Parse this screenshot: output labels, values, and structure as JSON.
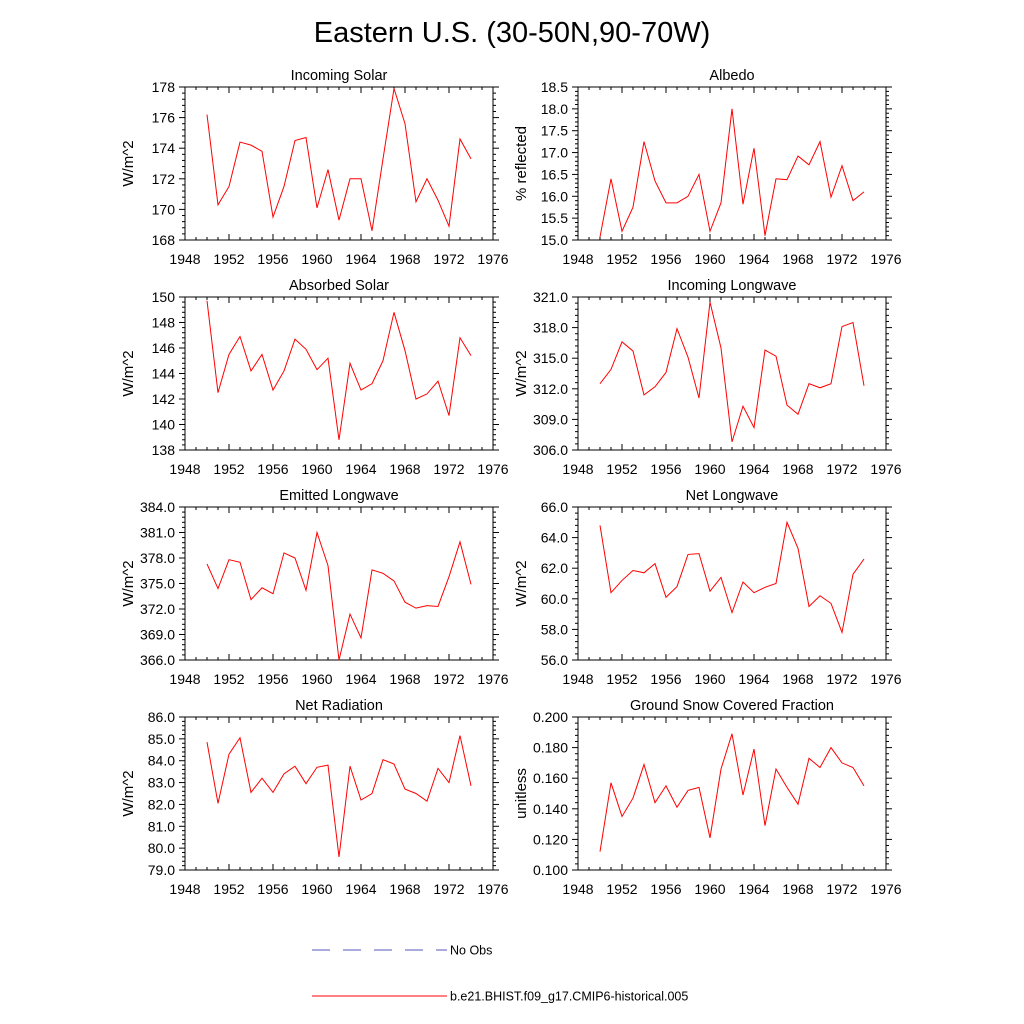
{
  "figure": {
    "title": "Eastern U.S. (30-50N,90-70W)",
    "series_color": "#ff0000",
    "obs_color": "#5555bb"
  },
  "legend": {
    "obs_label": "No Obs",
    "model_label": "b.e21.BHIST.f09_g17.CMIP6-historical.005"
  },
  "chart_data": [
    {
      "type": "line",
      "title": "Incoming Solar",
      "ylabel": "W/m^2",
      "xlim": [
        1948,
        1976
      ],
      "xticks": [
        1948,
        1952,
        1956,
        1960,
        1964,
        1968,
        1972,
        1976
      ],
      "ylim": [
        168,
        178
      ],
      "yticks": [
        168,
        170,
        172,
        174,
        176,
        178
      ],
      "yfmt": 0,
      "x": [
        1950,
        1951,
        1952,
        1953,
        1954,
        1955,
        1956,
        1957,
        1958,
        1959,
        1960,
        1961,
        1962,
        1963,
        1964,
        1965,
        1966,
        1967,
        1968,
        1969,
        1970,
        1971,
        1972,
        1973,
        1974
      ],
      "values": [
        176.2,
        170.3,
        171.5,
        174.4,
        174.2,
        173.8,
        169.5,
        171.5,
        174.5,
        174.7,
        170.1,
        172.6,
        169.3,
        172.0,
        172.0,
        168.6,
        173.3,
        177.9,
        175.6,
        170.5,
        172.0,
        170.6,
        168.9,
        174.6,
        173.3
      ]
    },
    {
      "type": "line",
      "title": "Albedo",
      "ylabel": "% reflected",
      "xlim": [
        1948,
        1976
      ],
      "xticks": [
        1948,
        1952,
        1956,
        1960,
        1964,
        1968,
        1972,
        1976
      ],
      "ylim": [
        15.0,
        18.5
      ],
      "yticks": [
        15.0,
        15.5,
        16.0,
        16.5,
        17.0,
        17.5,
        18.0,
        18.5
      ],
      "yfmt": 1,
      "x": [
        1950,
        1951,
        1952,
        1953,
        1954,
        1955,
        1956,
        1957,
        1958,
        1959,
        1960,
        1961,
        1962,
        1963,
        1964,
        1965,
        1966,
        1967,
        1968,
        1969,
        1970,
        1971,
        1972,
        1973,
        1974
      ],
      "values": [
        15.07,
        16.4,
        15.2,
        15.75,
        17.25,
        16.35,
        15.85,
        15.85,
        16.0,
        16.5,
        15.2,
        15.85,
        18.0,
        15.82,
        17.1,
        15.1,
        16.4,
        16.38,
        16.92,
        16.72,
        17.25,
        15.98,
        16.7,
        15.9,
        16.1
      ]
    },
    {
      "type": "line",
      "title": "Absorbed Solar",
      "ylabel": "W/m^2",
      "xlim": [
        1948,
        1976
      ],
      "xticks": [
        1948,
        1952,
        1956,
        1960,
        1964,
        1968,
        1972,
        1976
      ],
      "ylim": [
        138,
        150
      ],
      "yticks": [
        138,
        140,
        142,
        144,
        146,
        148,
        150
      ],
      "yfmt": 0,
      "x": [
        1950,
        1951,
        1952,
        1953,
        1954,
        1955,
        1956,
        1957,
        1958,
        1959,
        1960,
        1961,
        1962,
        1963,
        1964,
        1965,
        1966,
        1967,
        1968,
        1969,
        1970,
        1971,
        1972,
        1973,
        1974
      ],
      "values": [
        149.7,
        142.5,
        145.5,
        146.9,
        144.2,
        145.5,
        142.7,
        144.2,
        146.7,
        145.9,
        144.3,
        145.2,
        138.8,
        144.8,
        142.7,
        143.2,
        145.0,
        148.8,
        145.8,
        142.0,
        142.4,
        143.4,
        140.7,
        146.8,
        145.4
      ]
    },
    {
      "type": "line",
      "title": "Incoming Longwave",
      "ylabel": "W/m^2",
      "xlim": [
        1948,
        1976
      ],
      "xticks": [
        1948,
        1952,
        1956,
        1960,
        1964,
        1968,
        1972,
        1976
      ],
      "ylim": [
        306.0,
        321.0
      ],
      "yticks": [
        306.0,
        309.0,
        312.0,
        315.0,
        318.0,
        321.0
      ],
      "yfmt": 1,
      "x": [
        1950,
        1951,
        1952,
        1953,
        1954,
        1955,
        1956,
        1957,
        1958,
        1959,
        1960,
        1961,
        1962,
        1963,
        1964,
        1965,
        1966,
        1967,
        1968,
        1969,
        1970,
        1971,
        1972,
        1973,
        1974
      ],
      "values": [
        312.5,
        313.9,
        316.6,
        315.7,
        311.4,
        312.2,
        313.6,
        317.9,
        315.1,
        311.1,
        320.5,
        316.0,
        306.8,
        310.3,
        308.2,
        315.8,
        315.2,
        310.4,
        309.5,
        312.5,
        312.1,
        312.5,
        318.1,
        318.5,
        312.3
      ]
    },
    {
      "type": "line",
      "title": "Emitted Longwave",
      "ylabel": "W/m^2",
      "xlim": [
        1948,
        1976
      ],
      "xticks": [
        1948,
        1952,
        1956,
        1960,
        1964,
        1968,
        1972,
        1976
      ],
      "ylim": [
        366.0,
        384.0
      ],
      "yticks": [
        366.0,
        369.0,
        372.0,
        375.0,
        378.0,
        381.0,
        384.0
      ],
      "yfmt": 1,
      "x": [
        1950,
        1951,
        1952,
        1953,
        1954,
        1955,
        1956,
        1957,
        1958,
        1959,
        1960,
        1961,
        1962,
        1963,
        1964,
        1965,
        1966,
        1967,
        1968,
        1969,
        1970,
        1971,
        1972,
        1973,
        1974
      ],
      "values": [
        377.3,
        374.4,
        377.8,
        377.5,
        373.1,
        374.5,
        373.8,
        378.6,
        378.0,
        374.2,
        381.0,
        377.1,
        366.0,
        371.4,
        368.6,
        376.6,
        376.2,
        375.3,
        372.8,
        372.1,
        372.4,
        372.3,
        375.8,
        379.9,
        374.9
      ]
    },
    {
      "type": "line",
      "title": "Net Longwave",
      "ylabel": "W/m^2",
      "xlim": [
        1948,
        1976
      ],
      "xticks": [
        1948,
        1952,
        1956,
        1960,
        1964,
        1968,
        1972,
        1976
      ],
      "ylim": [
        56.0,
        66.0
      ],
      "yticks": [
        56.0,
        58.0,
        60.0,
        62.0,
        64.0,
        66.0
      ],
      "yfmt": 1,
      "x": [
        1950,
        1951,
        1952,
        1953,
        1954,
        1955,
        1956,
        1957,
        1958,
        1959,
        1960,
        1961,
        1962,
        1963,
        1964,
        1965,
        1966,
        1967,
        1968,
        1969,
        1970,
        1971,
        1972,
        1973,
        1974
      ],
      "values": [
        64.8,
        60.4,
        61.2,
        61.85,
        61.7,
        62.3,
        60.1,
        60.8,
        62.9,
        62.95,
        60.5,
        61.4,
        59.1,
        61.1,
        60.4,
        60.75,
        61.0,
        65.0,
        63.3,
        59.5,
        60.2,
        59.7,
        57.8,
        61.6,
        62.6
      ]
    },
    {
      "type": "line",
      "title": "Net Radiation",
      "ylabel": "W/m^2",
      "xlim": [
        1948,
        1976
      ],
      "xticks": [
        1948,
        1952,
        1956,
        1960,
        1964,
        1968,
        1972,
        1976
      ],
      "ylim": [
        79.0,
        86.0
      ],
      "yticks": [
        79.0,
        80.0,
        81.0,
        82.0,
        83.0,
        84.0,
        85.0,
        86.0
      ],
      "yfmt": 1,
      "x": [
        1950,
        1951,
        1952,
        1953,
        1954,
        1955,
        1956,
        1957,
        1958,
        1959,
        1960,
        1961,
        1962,
        1963,
        1964,
        1965,
        1966,
        1967,
        1968,
        1969,
        1970,
        1971,
        1972,
        1973,
        1974
      ],
      "values": [
        84.85,
        82.05,
        84.3,
        85.05,
        82.55,
        83.2,
        82.55,
        83.4,
        83.75,
        82.95,
        83.7,
        83.8,
        79.6,
        83.75,
        82.2,
        82.5,
        84.05,
        83.85,
        82.7,
        82.5,
        82.15,
        83.65,
        83.0,
        85.15,
        82.85
      ]
    },
    {
      "type": "line",
      "title": "Ground Snow Covered Fraction",
      "ylabel": "unitless",
      "xlim": [
        1948,
        1976
      ],
      "xticks": [
        1948,
        1952,
        1956,
        1960,
        1964,
        1968,
        1972,
        1976
      ],
      "ylim": [
        0.1,
        0.2
      ],
      "yticks": [
        0.1,
        0.12,
        0.14,
        0.16,
        0.18,
        0.2
      ],
      "yfmt": 3,
      "x": [
        1950,
        1951,
        1952,
        1953,
        1954,
        1955,
        1956,
        1957,
        1958,
        1959,
        1960,
        1961,
        1962,
        1963,
        1964,
        1965,
        1966,
        1967,
        1968,
        1969,
        1970,
        1971,
        1972,
        1973,
        1974
      ],
      "values": [
        0.112,
        0.157,
        0.135,
        0.147,
        0.169,
        0.144,
        0.155,
        0.141,
        0.152,
        0.154,
        0.121,
        0.166,
        0.189,
        0.149,
        0.179,
        0.129,
        0.166,
        0.154,
        0.143,
        0.173,
        0.167,
        0.18,
        0.17,
        0.167,
        0.155
      ]
    }
  ]
}
